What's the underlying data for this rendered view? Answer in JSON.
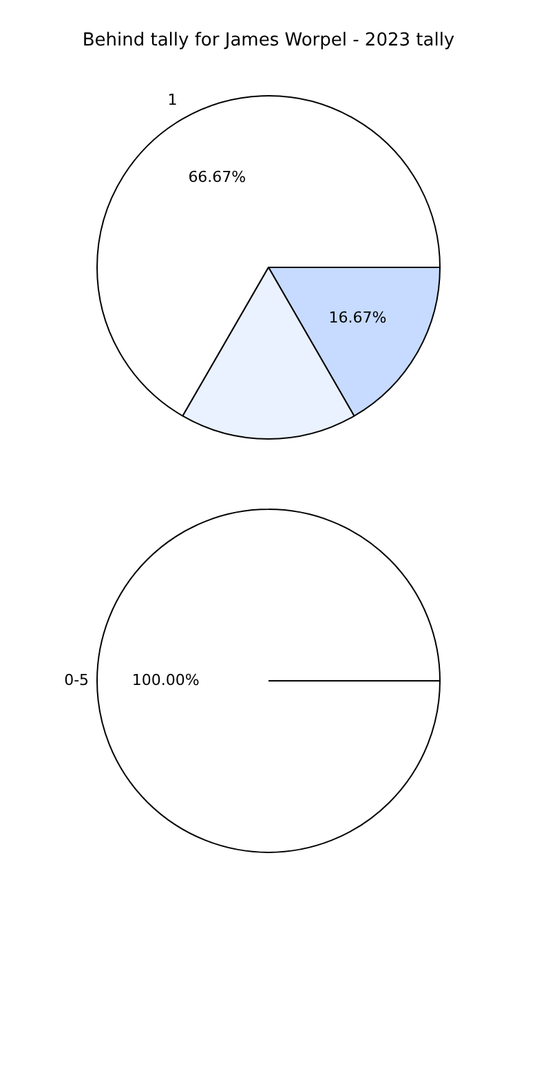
{
  "chart_data": [
    {
      "type": "pie",
      "title": "Behind tally for James Worpel - 2023 tally",
      "categories": [
        "1",
        null,
        null
      ],
      "values": [
        66.67,
        16.67,
        16.67
      ],
      "colors": [
        "#ffffff",
        "#c6dbff",
        "#eaf1ff"
      ],
      "value_labels": [
        "66.67%",
        "16.67%",
        null
      ],
      "legend": false
    },
    {
      "type": "pie",
      "categories": [
        "0-5"
      ],
      "values": [
        100
      ],
      "colors": [
        "#ffffff"
      ],
      "value_labels": [
        "100.00%"
      ],
      "legend": false
    }
  ]
}
